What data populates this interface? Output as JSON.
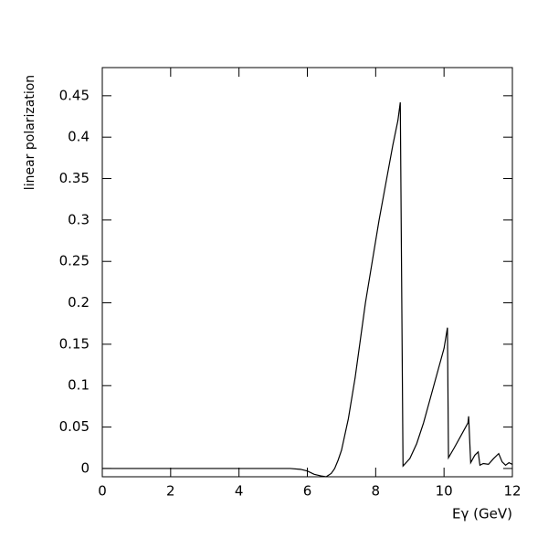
{
  "chart_data": {
    "type": "line",
    "x_label": "Eγ (GeV)",
    "y_label": "linear polarization",
    "x": [
      0,
      1,
      2,
      3,
      4,
      5,
      5.5,
      5.8,
      6.0,
      6.2,
      6.4,
      6.55,
      6.7,
      6.8,
      6.9,
      7.0,
      7.2,
      7.4,
      7.6,
      7.7,
      7.9,
      8.1,
      8.3,
      8.5,
      8.65,
      8.72,
      8.8,
      9.0,
      9.2,
      9.4,
      9.6,
      9.8,
      10.0,
      10.1,
      10.13,
      10.3,
      10.5,
      10.7,
      10.72,
      10.78,
      10.9,
      11.0,
      11.05,
      11.15,
      11.3,
      11.45,
      11.6,
      11.7,
      11.8,
      11.9,
      12.0
    ],
    "values": [
      0,
      0,
      0,
      0,
      0,
      0,
      0,
      -0.001,
      -0.003,
      -0.007,
      -0.009,
      -0.01,
      -0.006,
      0.0,
      0.01,
      0.022,
      0.06,
      0.11,
      0.17,
      0.2,
      0.25,
      0.3,
      0.345,
      0.39,
      0.42,
      0.442,
      0.003,
      0.012,
      0.03,
      0.055,
      0.085,
      0.115,
      0.145,
      0.17,
      0.013,
      0.025,
      0.04,
      0.055,
      0.063,
      0.007,
      0.016,
      0.02,
      0.004,
      0.006,
      0.005,
      0.012,
      0.018,
      0.008,
      0.004,
      0.007,
      0.005
    ],
    "color": "#000000",
    "xlim": [
      0,
      12
    ],
    "ylim": [
      -0.01,
      0.484
    ],
    "xticks": [
      0,
      2,
      4,
      6,
      8,
      10,
      12
    ],
    "yticks": [
      0,
      0.05,
      0.1,
      0.15,
      0.2,
      0.25,
      0.3,
      0.35,
      0.4,
      0.45
    ]
  }
}
